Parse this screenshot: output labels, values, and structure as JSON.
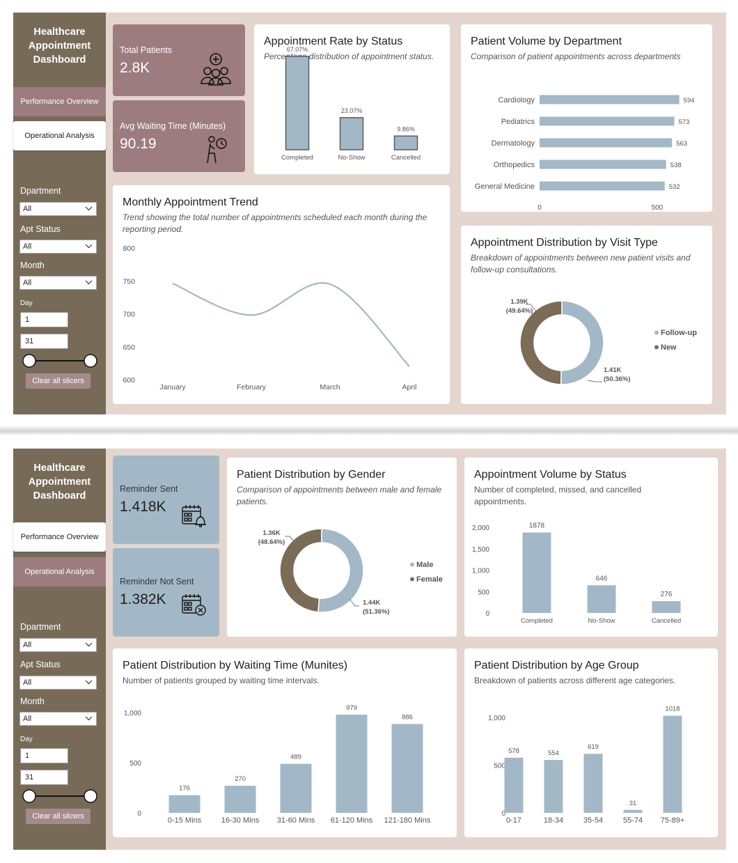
{
  "sidebar": {
    "title_lines": [
      "Healthcare",
      "Appointment",
      "Dashboard"
    ],
    "nav": [
      "Performance Overview",
      "Operational Analysis"
    ],
    "filters": {
      "department_label": "Dpartment",
      "department_value": "All",
      "status_label": "Apt Status",
      "status_value": "All",
      "month_label": "Month",
      "month_value": "All",
      "day_label": "Day",
      "day_from": "1",
      "day_to": "31"
    },
    "clear_label": "Clear all slicers"
  },
  "page1": {
    "kpi_total": {
      "label": "Total Patients",
      "value": "2.8K",
      "icon": "patients-group-icon",
      "color": "#9c7c7f"
    },
    "kpi_wait": {
      "label": "Avg Waiting Time (Minutes)",
      "value": "90.19",
      "icon": "waiting-person-clock-icon",
      "color": "#9c7c7f"
    }
  },
  "page2": {
    "kpi_sent": {
      "label": "Reminder Sent",
      "value": "1.418K",
      "icon": "calendar-bell-icon",
      "color": "#a3b8c6"
    },
    "kpi_not_sent": {
      "label": "Reminder Not Sent",
      "value": "1.382K",
      "icon": "calendar-x-icon",
      "color": "#a3b8c6"
    }
  },
  "colors": {
    "bar": "#a3b8c6",
    "dark": "#7b6c58",
    "sidebar": "#776b58",
    "accent": "#9c7c7f",
    "bg": "#e4d6cf"
  },
  "chart_data": [
    {
      "id": "status_rate",
      "type": "bar",
      "title": "Appointment Rate by Status",
      "subtitle": "Percentage distribution of appointment status.",
      "categories": [
        "Completed",
        "No-Show",
        "Cancelled"
      ],
      "values": [
        67.07,
        23.07,
        9.86
      ],
      "data_labels": [
        "67.07%",
        "23.07%",
        "9.86%"
      ]
    },
    {
      "id": "department",
      "type": "bar",
      "orientation": "horizontal",
      "title": "Patient Volume by Department",
      "subtitle": "Comparison of patient appointments across departments",
      "categories": [
        "Cardiology",
        "Pediatrics",
        "Dermatology",
        "Orthopedics",
        "General Medicine"
      ],
      "values": [
        594,
        573,
        563,
        538,
        532
      ],
      "x_ticks": [
        "0",
        "500"
      ],
      "xlim": [
        0,
        600
      ]
    },
    {
      "id": "monthly",
      "type": "line",
      "title": "Monthly Appointment Trend",
      "subtitle": "Trend showing the total number of appointments scheduled each month during the reporting period.",
      "categories": [
        "January",
        "February",
        "March",
        "April"
      ],
      "values": [
        746,
        698,
        745,
        620
      ],
      "y_ticks": [
        "800",
        "750",
        "700",
        "650",
        "600"
      ],
      "ylim": [
        600,
        800
      ]
    },
    {
      "id": "visit_type",
      "type": "pie",
      "title": "Appointment Distribution by Visit Type",
      "subtitle": "Breakdown of appointments between new patient visits and follow-up consultations.",
      "labels": [
        "Follow-up",
        "New"
      ],
      "values": [
        50.36,
        49.64
      ],
      "value_labels": [
        "1.41K",
        "1.39K"
      ],
      "pct_labels": [
        "(50.36%)",
        "(49.64%)"
      ],
      "legend": "right"
    },
    {
      "id": "gender",
      "type": "pie",
      "title": "Patient Distribution by Gender",
      "subtitle": "Comparison of appointments between male and female patients.",
      "labels": [
        "Male",
        "Female"
      ],
      "values": [
        51.36,
        48.64
      ],
      "value_labels": [
        "1.44K",
        "1.36K"
      ],
      "pct_labels": [
        "(51.36%)",
        "(48.64%)"
      ],
      "legend": "right"
    },
    {
      "id": "status_volume",
      "type": "bar",
      "title": "Appointment Volume by Status",
      "subtitle": "Number of completed, missed, and cancelled appointments.",
      "categories": [
        "Completed",
        "No-Show",
        "Cancelled"
      ],
      "values": [
        1878,
        646,
        276
      ],
      "y_ticks": [
        "2,000",
        "1,500",
        "1,000",
        "500",
        "0"
      ],
      "ylim": [
        0,
        2000
      ]
    },
    {
      "id": "waiting",
      "type": "bar",
      "title": "Patient Distribution by Waiting Time (Munites)",
      "subtitle": "Number of patients grouped by waiting time intervals.",
      "categories": [
        "0-15 Mins",
        "16-30 Mins",
        "31-60 Mins",
        "61-120 Mins",
        "121-180 Mins"
      ],
      "values": [
        176,
        270,
        489,
        979,
        886
      ],
      "y_ticks": [
        "1,000",
        "500",
        "0"
      ],
      "ylim": [
        0,
        1000
      ]
    },
    {
      "id": "age",
      "type": "bar",
      "title": "Patient Distribution by Age Group",
      "subtitle": "Breakdown of patients across different age categories.",
      "categories": [
        "0-17",
        "18-34",
        "35-54",
        "55-74",
        "75-89+"
      ],
      "values": [
        578,
        554,
        619,
        31,
        1018
      ],
      "y_ticks": [
        "1,000",
        "500",
        "0"
      ],
      "ylim": [
        0,
        1000
      ]
    }
  ]
}
